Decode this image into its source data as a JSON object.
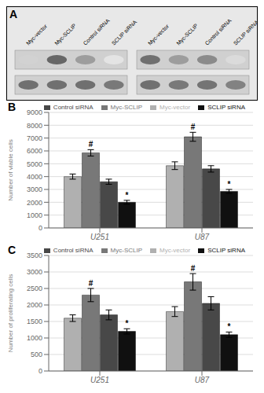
{
  "chart_data": [
    {
      "type": "blot",
      "title": "A",
      "categories": [
        "Myc-vector",
        "Myc-SCLIP",
        "Control siRNA",
        "SCLIP siRNA",
        "Myc-vector",
        "Myc-SCLIP",
        "Control siRNA",
        "SCLIP siRNA"
      ],
      "values": [
        [
          0.25,
          0.8
        ],
        [
          0.85,
          0.8
        ],
        [
          0.55,
          0.8
        ],
        [
          0.15,
          0.75
        ],
        [
          0.8,
          0.8
        ],
        [
          0.55,
          0.75
        ],
        [
          0.65,
          0.78
        ],
        [
          0.2,
          0.7
        ]
      ]
    },
    {
      "type": "bar",
      "title": "B",
      "ylabel": "Number of viable cells",
      "categories": [
        "U251",
        "U87"
      ],
      "series": [
        {
          "name": "Myc-vector",
          "color": "#b0b0b0",
          "values": [
            4000,
            4850
          ],
          "errors": [
            200,
            300
          ]
        },
        {
          "name": "Myc-SCLIP",
          "color": "#787878",
          "values": [
            5850,
            7100
          ],
          "errors": [
            250,
            350
          ]
        },
        {
          "name": "Control siRNA",
          "color": "#484848",
          "values": [
            3600,
            4600
          ],
          "errors": [
            200,
            250
          ]
        },
        {
          "name": "SCLIP siRNA",
          "color": "#101010",
          "values": [
            2000,
            2850
          ],
          "errors": [
            150,
            150
          ]
        }
      ],
      "ylim": [
        0,
        9000
      ],
      "yticks": [
        0,
        1000,
        2000,
        3000,
        4000,
        5000,
        6000,
        7000,
        8000,
        9000
      ],
      "grid": true,
      "legend": "upper right",
      "annotations": [
        {
          "text": "#",
          "series": "Myc-SCLIP"
        },
        {
          "text": "*",
          "series": "SCLIP siRNA"
        }
      ]
    },
    {
      "type": "bar",
      "title": "C",
      "ylabel": "Number of proliferating cells",
      "categories": [
        "U251",
        "U87"
      ],
      "series": [
        {
          "name": "Myc-vector",
          "color": "#b0b0b0",
          "values": [
            1600,
            1800
          ],
          "errors": [
            100,
            150
          ]
        },
        {
          "name": "Myc-SCLIP",
          "color": "#787878",
          "values": [
            2300,
            2700
          ],
          "errors": [
            200,
            250
          ]
        },
        {
          "name": "Control siRNA",
          "color": "#484848",
          "values": [
            1700,
            2050
          ],
          "errors": [
            150,
            200
          ]
        },
        {
          "name": "SCLIP siRNA",
          "color": "#101010",
          "values": [
            1200,
            1100
          ],
          "errors": [
            80,
            80
          ]
        }
      ],
      "ylim": [
        0,
        3500
      ],
      "yticks": [
        0,
        500,
        1000,
        1500,
        2000,
        2500,
        3000,
        3500
      ],
      "grid": true,
      "legend": "upper right",
      "annotations": [
        {
          "text": "#",
          "series": "Myc-SCLIP"
        },
        {
          "text": "*",
          "series": "SCLIP siRNA"
        }
      ]
    }
  ]
}
